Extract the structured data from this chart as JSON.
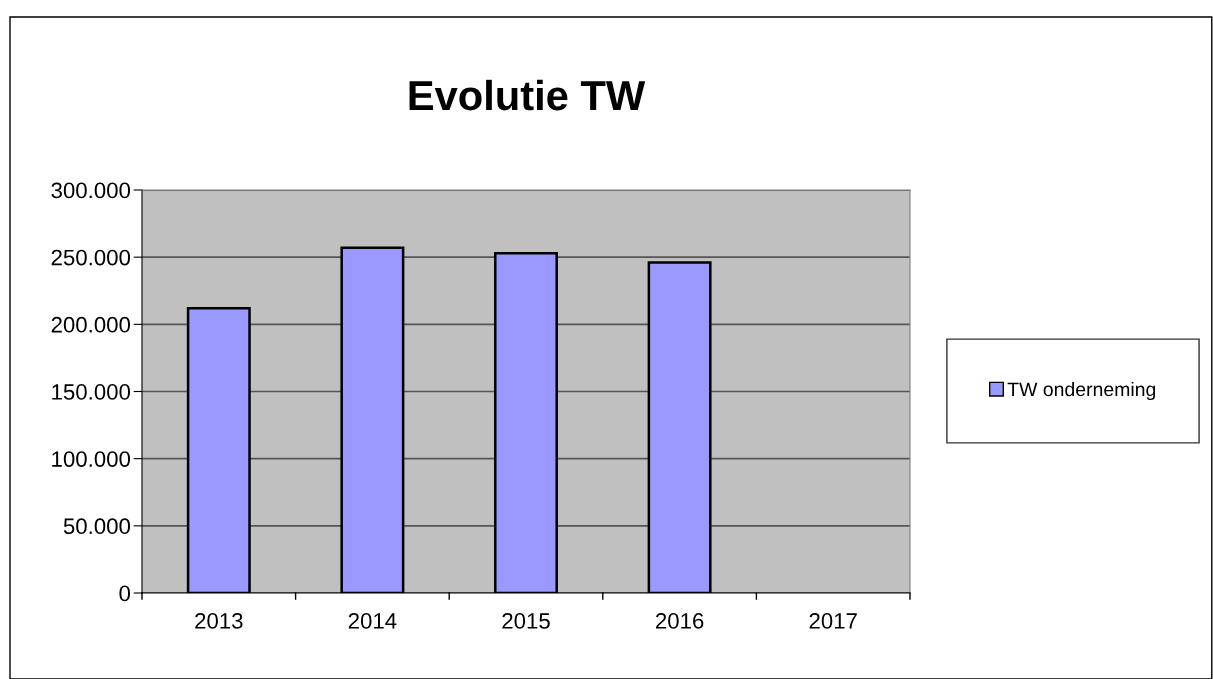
{
  "chart_data": {
    "type": "bar",
    "title": "Evolutie TW",
    "categories": [
      "2013",
      "2014",
      "2015",
      "2016",
      "2017"
    ],
    "series": [
      {
        "name": "TW onderneming",
        "color": "#9999ff",
        "values": [
          212000,
          257000,
          253000,
          246000,
          null
        ]
      }
    ],
    "ylim": [
      0,
      300000
    ],
    "yticks": [
      0,
      {
        "value": 50000,
        "label": "50.000"
      },
      {
        "value": 100000,
        "label": "100.000"
      },
      {
        "value": 150000,
        "label": "150.000"
      },
      {
        "value": 200000,
        "label": "200.000"
      },
      {
        "value": 250000,
        "label": "250.000"
      },
      {
        "value": 300000,
        "label": "300.000"
      }
    ],
    "grid": "y",
    "legend": "right"
  }
}
